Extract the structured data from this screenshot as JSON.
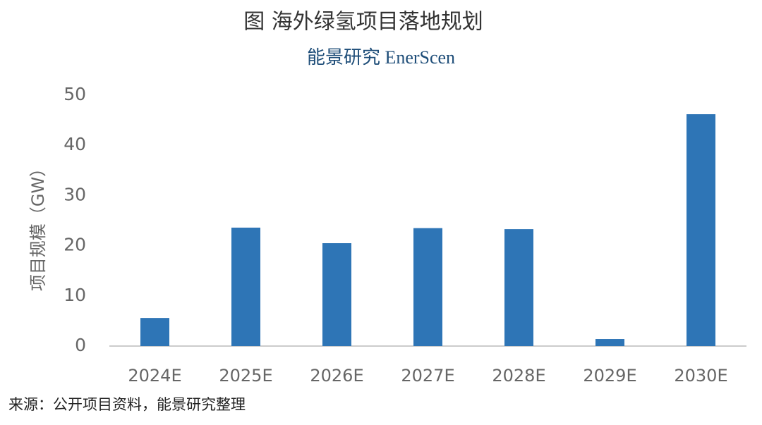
{
  "chart_data": {
    "type": "bar",
    "title": "图  海外绿氢项目落地规划",
    "subtitle": "能景研究 EnerScen",
    "y_label": "项目规模（GW）",
    "source": "来源：公开项目资料，能景研究整理",
    "categories": [
      "2024E",
      "2025E",
      "2026E",
      "2027E",
      "2028E",
      "2029E",
      "2030E"
    ],
    "values": [
      5.6,
      23.6,
      20.5,
      23.5,
      23.3,
      1.4,
      46.2
    ],
    "color": "#2e75b6",
    "ylim": [
      0,
      50
    ],
    "yticks": [
      0,
      10,
      20,
      30,
      40,
      50
    ],
    "grid": false
  }
}
